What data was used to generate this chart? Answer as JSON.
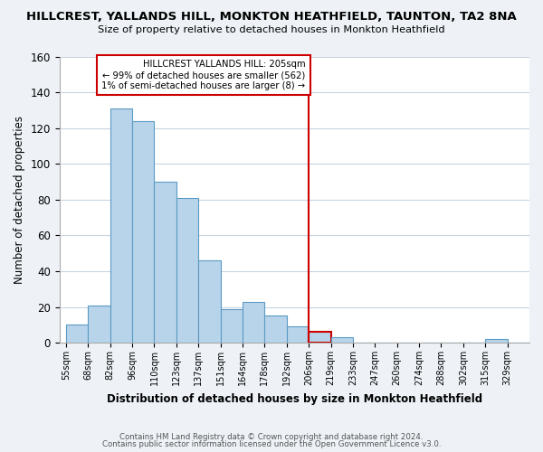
{
  "title": "HILLCREST, YALLANDS HILL, MONKTON HEATHFIELD, TAUNTON, TA2 8NA",
  "subtitle": "Size of property relative to detached houses in Monkton Heathfield",
  "xlabel": "Distribution of detached houses by size in Monkton Heathfield",
  "ylabel": "Number of detached properties",
  "bar_labels": [
    "55sqm",
    "68sqm",
    "82sqm",
    "96sqm",
    "110sqm",
    "123sqm",
    "137sqm",
    "151sqm",
    "164sqm",
    "178sqm",
    "192sqm",
    "206sqm",
    "219sqm",
    "233sqm",
    "247sqm",
    "260sqm",
    "274sqm",
    "288sqm",
    "302sqm",
    "315sqm",
    "329sqm"
  ],
  "bar_heights": [
    10,
    21,
    131,
    124,
    90,
    81,
    46,
    19,
    23,
    15,
    9,
    6,
    3,
    0,
    0,
    0,
    0,
    0,
    0,
    2,
    0
  ],
  "bar_color": "#b8d4ea",
  "bar_edge_color": "#5b9ac4",
  "highlight_bar_idx": 11,
  "highlight_color": "#cc0000",
  "annotation_title": "HILLCREST YALLANDS HILL: 205sqm",
  "annotation_line1": "← 99% of detached houses are smaller (562)",
  "annotation_line2": "1% of semi-detached houses are larger (8) →",
  "annotation_box_color": "#ffffff",
  "annotation_box_edge": "#cc0000",
  "ylim": [
    0,
    160
  ],
  "yticks": [
    0,
    20,
    40,
    60,
    80,
    100,
    120,
    140,
    160
  ],
  "footer1": "Contains HM Land Registry data © Crown copyright and database right 2024.",
  "footer2": "Contains public sector information licensed under the Open Government Licence v3.0.",
  "bg_color": "#eef2f7",
  "plot_bg_color": "#ffffff",
  "grid_color": "#c8d4e0"
}
